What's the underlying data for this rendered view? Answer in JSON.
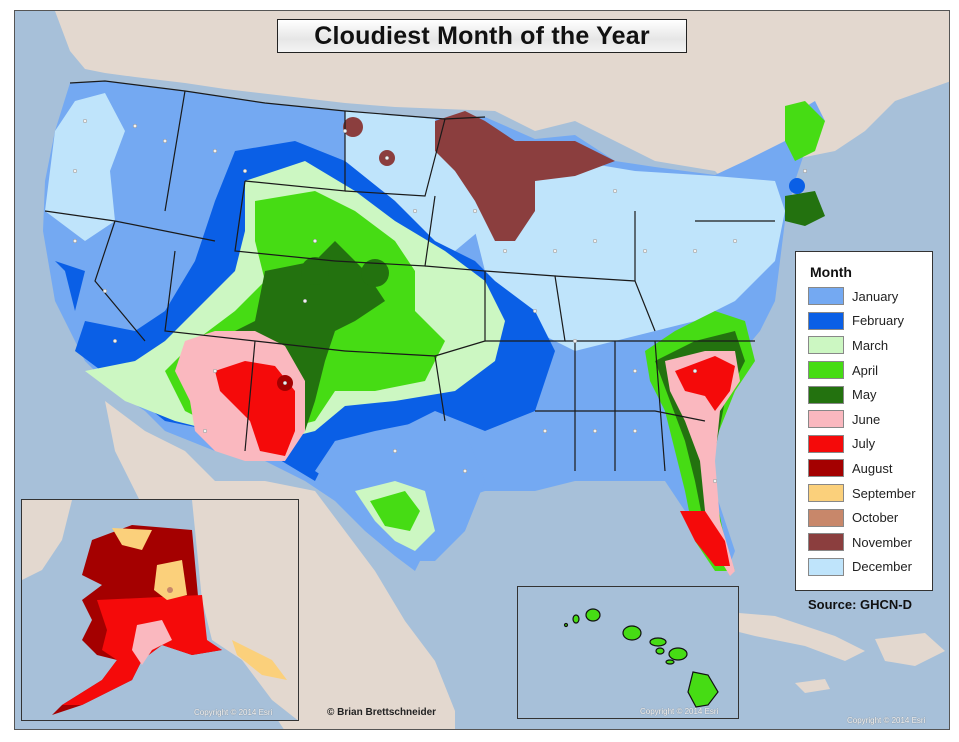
{
  "map": {
    "title": "Cloudiest Month of the Year",
    "legend": {
      "title": "Month",
      "items": [
        {
          "label": "January",
          "color": "#74a9f2"
        },
        {
          "label": "February",
          "color": "#0a5fe6"
        },
        {
          "label": "March",
          "color": "#ccf7c2"
        },
        {
          "label": "April",
          "color": "#46dc14"
        },
        {
          "label": "May",
          "color": "#23720f"
        },
        {
          "label": "June",
          "color": "#fab8bf"
        },
        {
          "label": "July",
          "color": "#f50a0a"
        },
        {
          "label": "August",
          "color": "#a40000"
        },
        {
          "label": "September",
          "color": "#fbd07b"
        },
        {
          "label": "October",
          "color": "#c8876a"
        },
        {
          "label": "November",
          "color": "#8b3e3e"
        },
        {
          "label": "December",
          "color": "#bfe4fb"
        }
      ]
    },
    "source": "Source: GHCN-D",
    "author_credit": "© Brian Brettschneider",
    "copyright_main": "Copyright © 2014 Esri",
    "copyright_alaska": "Copyright © 2014 Esri",
    "copyright_hawaii": "Copyright © 2014 Esri",
    "insets": [
      "Alaska",
      "Hawaii"
    ],
    "colors": {
      "ocean": "#a7c0d9",
      "land_outside": "#e3d8cf",
      "border": "#1a1a1a",
      "station_dot": "#f2f2f2"
    }
  }
}
